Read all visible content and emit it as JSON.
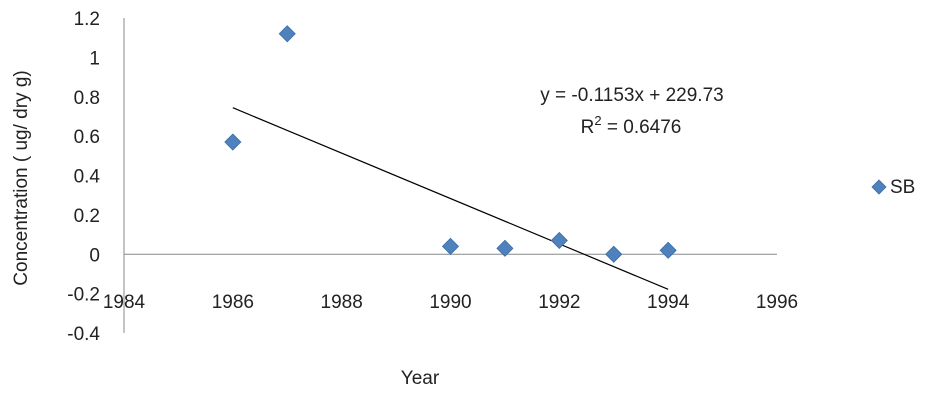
{
  "chart_data": {
    "type": "scatter",
    "title": "",
    "xlabel": "Year",
    "ylabel": "Concentration ( ug/ dry g)",
    "xlim": [
      1984,
      1996
    ],
    "ylim": [
      -0.4,
      1.2
    ],
    "x_ticks": [
      "1984",
      "1986",
      "1988",
      "1990",
      "1992",
      "1994",
      "1996"
    ],
    "y_ticks": [
      "1.2",
      "1",
      "0.8",
      "0.6",
      "0.4",
      "0.2",
      "0",
      "-0.2",
      "-0.4"
    ],
    "series": [
      {
        "name": "SB",
        "color": "#4f81bd",
        "marker": "diamond",
        "x": [
          1986,
          1987,
          1990,
          1991,
          1992,
          1993,
          1994
        ],
        "y": [
          0.57,
          1.12,
          0.04,
          0.03,
          0.07,
          0.0,
          0.02
        ]
      }
    ],
    "trendline": {
      "slope": -0.1153,
      "intercept": 229.73,
      "x_range": [
        1986,
        1994
      ],
      "equation_label": "y = -0.1153x + 229.73",
      "r2_prefix": "R",
      "r2_sup": "2",
      "r2_suffix": " = 0.6476"
    },
    "legend_position": "right",
    "grid": false
  }
}
